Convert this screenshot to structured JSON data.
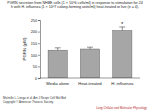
{
  "chart_data": {
    "type": "bar",
    "title": "PGRN secretion from NHBE cells (1 × 10^6 cells/ml) in response to stimulation for 24 h with H. influenza (1 × 10^7 colony-forming units/ml) heat-treated or live (n = 4).",
    "y_label": "PGRN (pM)",
    "categories": [
      "Media alone",
      "Heat-treated",
      "H. influenza"
    ],
    "values": [
      120,
      125,
      205
    ],
    "errors": [
      10,
      8,
      15
    ],
    "color": "#a6a6a6",
    "ylim": [
      0,
      250
    ],
    "yticks": [
      0,
      50,
      100,
      150,
      200,
      250
    ],
    "annotations": [
      {
        "text": "*",
        "category": "H. influenza"
      }
    ],
    "footer": [
      "Michelle L. Longo et al. Am J Respir Cell Mol Biol",
      "Copyright © American Thoracic Society"
    ],
    "publisher": "Lung Cellular and Molecular Physiology"
  }
}
